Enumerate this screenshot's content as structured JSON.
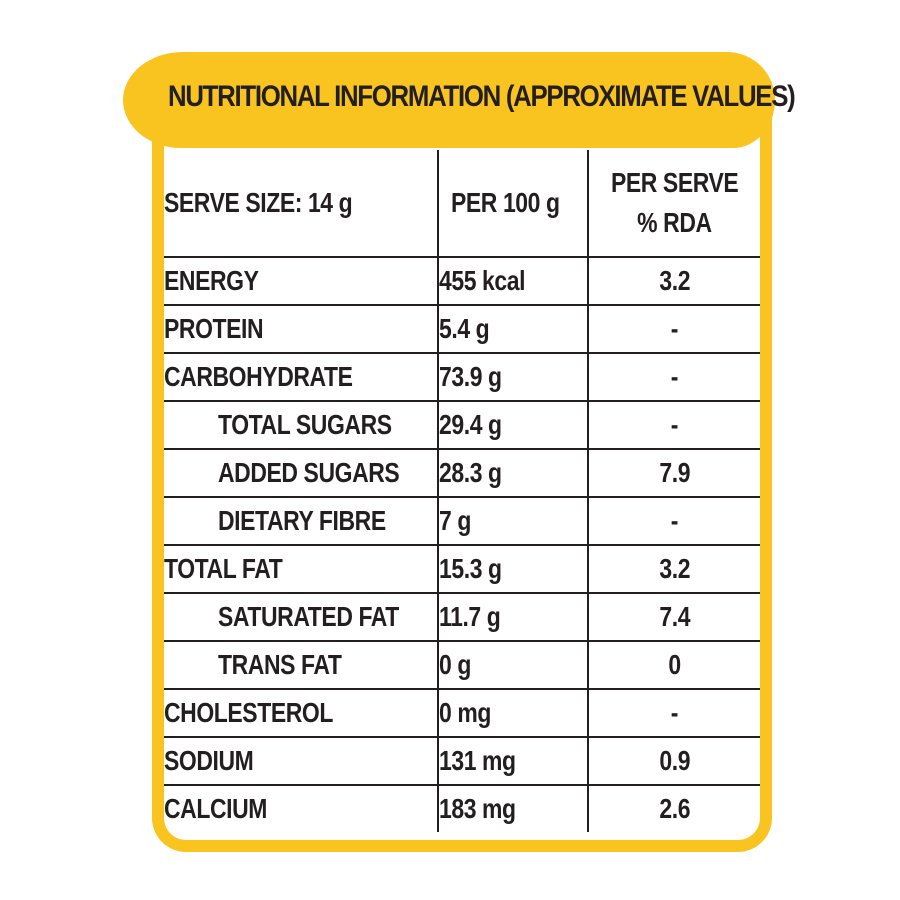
{
  "title": "NUTRITIONAL INFORMATION (APPROXIMATE VALUES)",
  "header": {
    "serve_size": "SERVE SIZE: 14 g",
    "per_100g": "PER 100 g",
    "per_serve_line1": "PER SERVE",
    "per_serve_line2": "% RDA"
  },
  "rows": [
    {
      "name": "ENERGY",
      "per100": "455 kcal",
      "rda": "3.2"
    },
    {
      "name": "PROTEIN",
      "per100": "5.4 g",
      "rda": "-"
    },
    {
      "name": "CARBOHYDRATE",
      "per100": "73.9 g",
      "rda": "-"
    },
    {
      "name": "TOTAL SUGARS",
      "per100": "29.4 g",
      "rda": "-"
    },
    {
      "name": "ADDED SUGARS",
      "per100": "28.3 g",
      "rda": "7.9"
    },
    {
      "name": "DIETARY FIBRE",
      "per100": "7 g",
      "rda": "-"
    },
    {
      "name": "TOTAL FAT",
      "per100": "15.3 g",
      "rda": "3.2"
    },
    {
      "name": "SATURATED FAT",
      "per100": "11.7 g",
      "rda": "7.4"
    },
    {
      "name": "TRANS FAT",
      "per100": "0 g",
      "rda": "0"
    },
    {
      "name": "CHOLESTEROL",
      "per100": "0 mg",
      "rda": "-"
    },
    {
      "name": "SODIUM",
      "per100": "131 mg",
      "rda": "0.9"
    },
    {
      "name": "CALCIUM",
      "per100": "183 mg",
      "rda": "2.6"
    }
  ],
  "colors": {
    "accent": "#FAC420",
    "text": "#231f20"
  }
}
